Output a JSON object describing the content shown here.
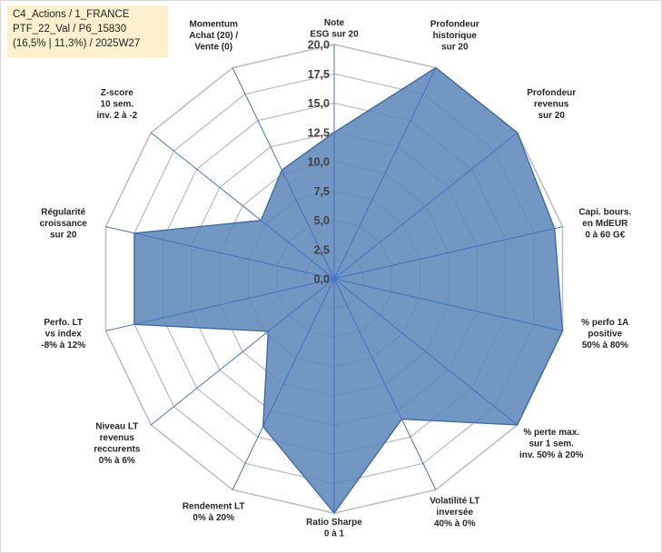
{
  "info_box": {
    "lines": [
      "C4_Actions / 1_FRANCE",
      "PTF_22_Val / P6_15830",
      "(16,5% | 11,3%) / 2025W27"
    ]
  },
  "chart_data": {
    "type": "radar",
    "axes": [
      [
        "Note",
        "ESG sur 20"
      ],
      [
        "Profondeur",
        "historique",
        "sur 20"
      ],
      [
        "Profondeur",
        "revenus",
        "sur 20"
      ],
      [
        "Capi. bours.",
        "en MdEUR",
        "0 à 60 G€"
      ],
      [
        "% perfo 1A",
        "positive",
        "50% à 80%"
      ],
      [
        "% perte max.",
        "sur 1 sem.",
        "inv. 50% à 20%"
      ],
      [
        "Volatilité LT",
        "inversée",
        "40% à 0%"
      ],
      [
        "Ratio Sharpe",
        "0 à 1"
      ],
      [
        "Rendement LT",
        "0% à 20%"
      ],
      [
        "Niveau LT",
        "revenus",
        "reccurents",
        "0% à 6%"
      ],
      [
        "Perfo. LT",
        "vs index",
        "-8% à 12%"
      ],
      [
        "Régularité",
        "croissance",
        "sur 20"
      ],
      [
        "Z-score",
        "10 sem.",
        "inv. 2 à -2"
      ],
      [
        "Momentum",
        "Achat (20) /",
        "Vente (0)"
      ]
    ],
    "series": [
      {
        "values": [
          12.5,
          20,
          20,
          19.3,
          20,
          20,
          13.3,
          20,
          14.0,
          7.2,
          17.5,
          17.5,
          8.0,
          10.3
        ]
      }
    ],
    "rlim": [
      0,
      20
    ],
    "ticks": [
      "0,0",
      "2,5",
      "5,0",
      "7,5",
      "10,0",
      "12,5",
      "15,0",
      "17,5",
      "20,0"
    ],
    "colors": {
      "fill": "#5b86b8",
      "stroke": "#3a68a8",
      "grid": "#bfbfbf",
      "spoke": "#4472c4"
    }
  }
}
